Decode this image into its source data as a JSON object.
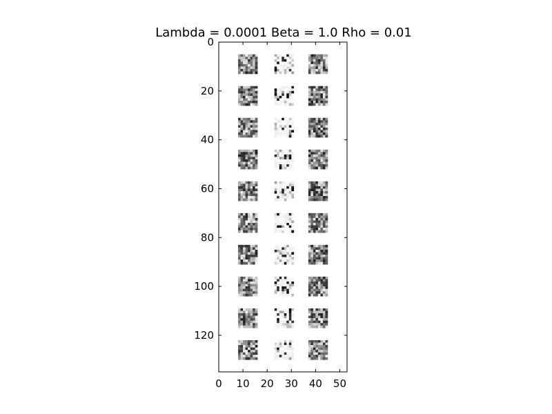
{
  "chart_data": {
    "type": "heatmap",
    "title": "Lambda = 0.0001 Beta = 1.0 Rho = 0.01",
    "colormap": "grayscale",
    "xlim": [
      0,
      53
    ],
    "ylim": [
      0,
      135
    ],
    "y_inverted": true,
    "grid": false,
    "xticks": [
      0,
      10,
      20,
      30,
      40,
      50
    ],
    "yticks": [
      0,
      20,
      40,
      60,
      80,
      100,
      120
    ],
    "tile_grid": {
      "rows": 10,
      "columns": 3,
      "tile_size": 8,
      "row_starts_y": [
        5,
        18,
        31,
        44,
        57,
        70,
        83,
        96,
        109,
        122
      ],
      "column_starts_x": [
        8,
        23,
        37
      ],
      "column_styles": [
        "dense",
        "sparse",
        "dense"
      ]
    }
  },
  "colors": {
    "background": "#ffffff",
    "axis": "#000000",
    "tile_dark": "#000000",
    "tile_light": "#ffffff"
  }
}
